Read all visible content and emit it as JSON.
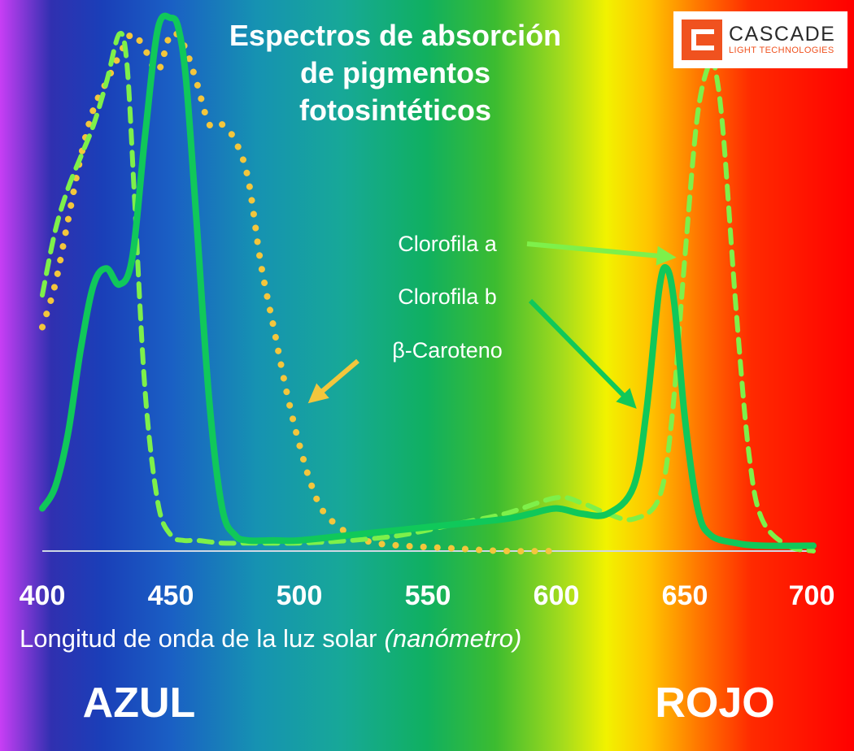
{
  "chart_data": {
    "type": "line",
    "title": "Espectros de absorción de pigmentos fotosintéticos",
    "title_lines": [
      "Espectros de absorción",
      "de pigmentos",
      "fotosintéticos"
    ],
    "xlabel": "Longitud de onda de la luz solar",
    "xlabel_unit": "(nanómetro)",
    "xlim": [
      400,
      700
    ],
    "ylim": [
      0,
      1
    ],
    "x_ticks": [
      "400",
      "450",
      "500",
      "550",
      "600",
      "650",
      "700"
    ],
    "grid": false,
    "region_labels": {
      "blue": "AZUL",
      "red": "ROJO"
    },
    "series": [
      {
        "name": "Clorofila a",
        "style": "dashed",
        "color": "#7ef04a",
        "x": [
          400,
          405,
          410,
          415,
          420,
          425,
          430,
          433,
          436,
          440,
          445,
          450,
          455,
          460,
          470,
          480,
          500,
          520,
          540,
          560,
          580,
          600,
          610,
          620,
          630,
          640,
          645,
          650,
          655,
          660,
          662,
          665,
          670,
          675,
          680,
          690,
          700
        ],
        "y": [
          0.48,
          0.6,
          0.68,
          0.74,
          0.8,
          0.88,
          0.97,
          0.91,
          0.65,
          0.3,
          0.09,
          0.03,
          0.02,
          0.02,
          0.015,
          0.015,
          0.015,
          0.02,
          0.03,
          0.05,
          0.07,
          0.1,
          0.09,
          0.07,
          0.06,
          0.1,
          0.25,
          0.55,
          0.82,
          0.92,
          0.9,
          0.78,
          0.45,
          0.18,
          0.06,
          0.01,
          0.0
        ]
      },
      {
        "name": "Clorofila b",
        "style": "solid",
        "color": "#10c85a",
        "x": [
          400,
          405,
          410,
          415,
          420,
          425,
          430,
          435,
          440,
          445,
          450,
          453,
          456,
          460,
          465,
          470,
          475,
          480,
          490,
          500,
          520,
          540,
          560,
          580,
          590,
          600,
          610,
          620,
          630,
          635,
          640,
          643,
          646,
          650,
          655,
          660,
          670,
          680,
          700
        ],
        "y": [
          0.08,
          0.12,
          0.22,
          0.38,
          0.5,
          0.53,
          0.5,
          0.55,
          0.78,
          0.98,
          1.0,
          0.98,
          0.88,
          0.62,
          0.28,
          0.08,
          0.03,
          0.02,
          0.02,
          0.02,
          0.03,
          0.04,
          0.05,
          0.06,
          0.07,
          0.08,
          0.07,
          0.07,
          0.12,
          0.26,
          0.49,
          0.53,
          0.46,
          0.25,
          0.08,
          0.03,
          0.015,
          0.01,
          0.01
        ]
      },
      {
        "name": "β-Caroteno",
        "style": "dotted",
        "color": "#f3c63c",
        "x": [
          400,
          405,
          410,
          415,
          420,
          425,
          430,
          435,
          440,
          445,
          450,
          455,
          460,
          465,
          470,
          475,
          480,
          485,
          490,
          495,
          500,
          505,
          510,
          520,
          530,
          540,
          560,
          580,
          600
        ],
        "y": [
          0.42,
          0.5,
          0.62,
          0.74,
          0.83,
          0.88,
          0.93,
          0.97,
          0.94,
          0.9,
          0.97,
          0.95,
          0.88,
          0.8,
          0.8,
          0.77,
          0.7,
          0.54,
          0.42,
          0.3,
          0.2,
          0.12,
          0.07,
          0.03,
          0.015,
          0.01,
          0.005,
          0.0,
          0.0
        ]
      }
    ],
    "annotations": [
      {
        "text": "Clorofila a",
        "points_to": "Clorofila a"
      },
      {
        "text": "Clorofila b",
        "points_to": "Clorofila b"
      },
      {
        "text": "β-Caroteno",
        "points_to": "β-Caroteno"
      }
    ]
  },
  "logo": {
    "name": "CASCADE",
    "tagline": "LIGHT TECHNOLOGIES",
    "brand_color": "#f0521f"
  }
}
